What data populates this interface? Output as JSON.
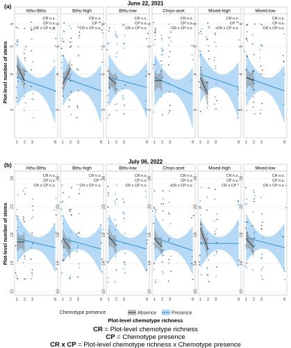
{
  "figure": {
    "legend": {
      "title": "Chemotype presence",
      "items": [
        {
          "label": "Absence",
          "color": "#333333"
        },
        {
          "label": "Presence",
          "color": "#2f8fd0"
        }
      ]
    },
    "x_title": "Plot-level chemotype richness",
    "key": [
      {
        "abbr": "CR",
        "text": "Plot-level chemotype richness"
      },
      {
        "abbr": "CP",
        "text": "Chemotype presence"
      },
      {
        "abbr": "CR x CP",
        "text": "Plot-level chemotype richness x Chemotype presence"
      }
    ],
    "colors": {
      "absence_line": "#333333",
      "presence_line": "#2f8fd0",
      "absence_band": "#8c8c8c",
      "presence_band": "#a9d4f5",
      "panel_bg": "#ffffff",
      "strip_bg": "#ffffff",
      "grid": "#e6e6e6"
    }
  },
  "chart_data": [
    {
      "type": "scatter",
      "panel_label": "(a)",
      "title": "June 22, 2021",
      "ylabel": "Plot-level number of stems",
      "xlabel": "Plot-level chemotype richness",
      "y_scale": "log",
      "ylim": [
        2.4,
        6.5
      ],
      "yticks": [
        3,
        4,
        5,
        6
      ],
      "x_ticks": [
        1,
        2,
        3,
        6
      ],
      "xlim": [
        0.7,
        6.3
      ],
      "facets": [
        {
          "name": "Athu-Bthu",
          "stats": [
            "CR n.s.",
            "CP n.s.",
            "CR x CP n.s."
          ],
          "absence": {
            "x": [
              1,
              2
            ],
            "y": [
              4.3,
              3.8
            ]
          },
          "presence": {
            "x": [
              1,
              6
            ],
            "y": [
              3.9,
              3.5
            ]
          }
        },
        {
          "name": "Bthu-high",
          "stats": [
            "CR n.s.",
            "CP **",
            "CR x CP n.s."
          ],
          "absence": {
            "x": [
              1,
              2
            ],
            "y": [
              3.7,
              4.2
            ]
          },
          "presence": {
            "x": [
              1,
              6
            ],
            "y": [
              3.9,
              3.5
            ]
          }
        },
        {
          "name": "Bthu-low",
          "stats": [
            "CR n.s.",
            "CP n.s.",
            "CR x CP n.s."
          ],
          "absence": {
            "x": [
              1,
              2
            ],
            "y": [
              3.9,
              3.7
            ]
          },
          "presence": {
            "x": [
              1,
              6
            ],
            "y": [
              3.9,
              3.6
            ]
          }
        },
        {
          "name": "Chrys-acet",
          "stats": [
            "CR n.s.",
            "CP n.s.",
            "CR x CP n.s."
          ],
          "absence": {
            "x": [
              1,
              2
            ],
            "y": [
              3.8,
              3.8
            ]
          },
          "presence": {
            "x": [
              1,
              6
            ],
            "y": [
              3.9,
              3.4
            ]
          }
        },
        {
          "name": "Mixed-high",
          "stats": [
            "CR n.s.",
            "CP **",
            "CR x CP n.s."
          ],
          "absence": {
            "x": [
              1,
              2
            ],
            "y": [
              3.9,
              3.4
            ]
          },
          "presence": {
            "x": [
              1,
              6
            ],
            "y": [
              4.0,
              3.6
            ]
          }
        },
        {
          "name": "Mixed-low",
          "stats": [
            "CR n.s.",
            "CP n.s.",
            "CR x CP n.s."
          ],
          "absence": {
            "x": [
              1,
              2
            ],
            "y": [
              3.9,
              3.8
            ]
          },
          "presence": {
            "x": [
              1,
              6
            ],
            "y": [
              3.9,
              3.5
            ]
          }
        }
      ]
    },
    {
      "type": "scatter",
      "panel_label": "(b)",
      "title": "July 06, 2022",
      "ylabel": "Plot-level number of stems",
      "xlabel": "Plot-level chemotype richness",
      "ylim": [
        9.5,
        27
      ],
      "yticks": [
        10,
        14,
        18,
        22,
        26
      ],
      "x_ticks": [
        1,
        2,
        3,
        6
      ],
      "xlim": [
        0.7,
        6.3
      ],
      "facets": [
        {
          "name": "Athu-Bthu",
          "stats": [
            "CR n.s.",
            "CP n.s.",
            "CR x CP n.s."
          ],
          "absence": {
            "x": [
              1,
              2
            ],
            "y": [
              17.0,
              17.0
            ]
          },
          "presence": {
            "x": [
              1,
              6
            ],
            "y": [
              17.5,
              16.2
            ]
          }
        },
        {
          "name": "Bthu-high",
          "stats": [
            "CR n.s.",
            "CP *",
            "CR x CP n.s."
          ],
          "absence": {
            "x": [
              1,
              2
            ],
            "y": [
              17.5,
              16.0
            ]
          },
          "presence": {
            "x": [
              1,
              6
            ],
            "y": [
              17.5,
              16.0
            ]
          }
        },
        {
          "name": "Bthu-low",
          "stats": [
            "CR n.s.",
            "CP n.s.",
            "CR x CP n.s."
          ],
          "absence": {
            "x": [
              1,
              2
            ],
            "y": [
              17.8,
              16.5
            ]
          },
          "presence": {
            "x": [
              1,
              6
            ],
            "y": [
              17.5,
              16.0
            ]
          }
        },
        {
          "name": "Chrys-acet",
          "stats": [
            "CR n.s.",
            "CP n.s.",
            "CR x CP n.s."
          ],
          "absence": {
            "x": [
              1,
              2
            ],
            "y": [
              17.5,
              16.3
            ]
          },
          "presence": {
            "x": [
              1,
              6
            ],
            "y": [
              17.6,
              15.8
            ]
          }
        },
        {
          "name": "Mixed-high",
          "stats": [
            "CR n.s.",
            "CP n.s.",
            "CR x CP *"
          ],
          "absence": {
            "x": [
              1,
              2
            ],
            "y": [
              19.0,
              16.0
            ]
          },
          "presence": {
            "x": [
              1,
              6
            ],
            "y": [
              16.8,
              16.8
            ]
          }
        },
        {
          "name": "Mixed-low",
          "stats": [
            "CR n.s.",
            "CP n.s.",
            "CR x CP n.s."
          ],
          "absence": {
            "x": [
              1,
              2
            ],
            "y": [
              17.5,
              16.2
            ]
          },
          "presence": {
            "x": [
              1,
              6
            ],
            "y": [
              17.6,
              16.2
            ]
          }
        }
      ]
    }
  ]
}
